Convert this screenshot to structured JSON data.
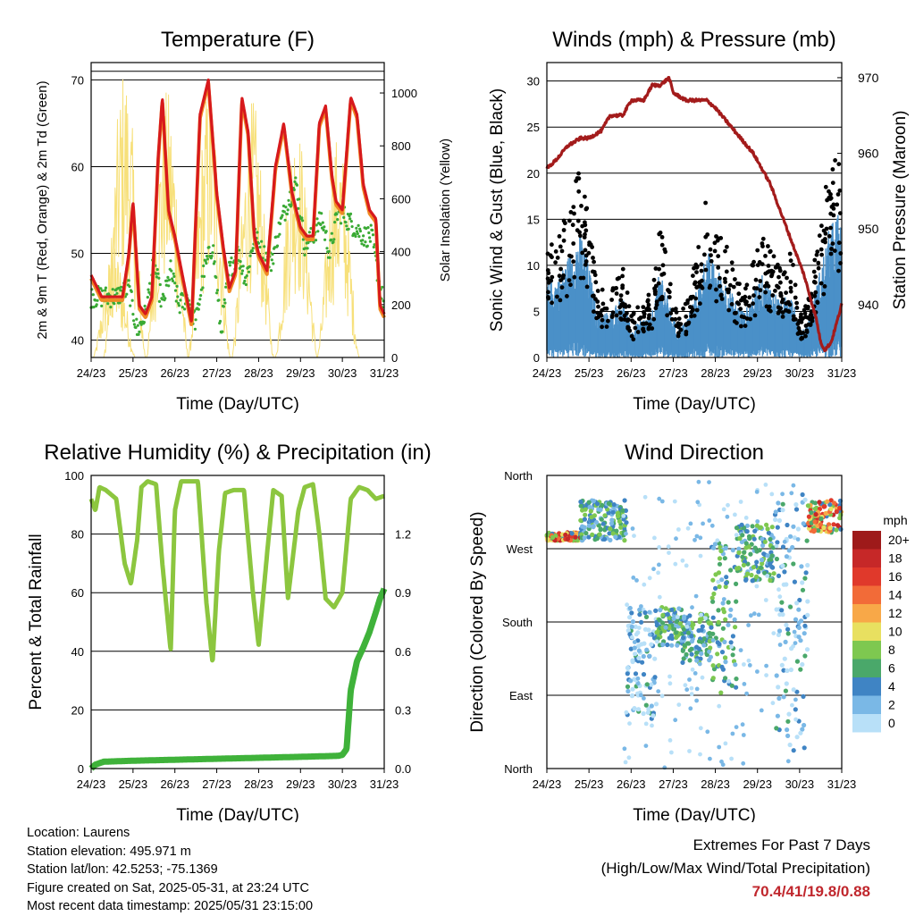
{
  "colors": {
    "t2m": "#d7191c",
    "t9m": "#f08a24",
    "td": "#3aaa35",
    "solar": "#f7e07a",
    "wind": "#4a90c8",
    "gust": "#000000",
    "pressure": "#a31b1b",
    "rh": "#8cc63f",
    "precip": "#3fb23a"
  },
  "time_ticks": [
    "24/23",
    "25/23",
    "26/23",
    "27/23",
    "28/23",
    "29/23",
    "30/23",
    "31/23"
  ],
  "chart_data": [
    {
      "id": "temperature",
      "type": "line",
      "title": "Temperature (F)",
      "xlabel": "Time (Day/UTC)",
      "ylabel": "2m & 9m T (Red, Orange) & 2m Td (Green)",
      "y2label": "Solar Insolation (Yellow)",
      "xlim": [
        0,
        7
      ],
      "ylim": [
        38,
        72
      ],
      "yticks": [
        40,
        50,
        60,
        70
      ],
      "y2lim": [
        0,
        1115
      ],
      "y2ticks": [
        0,
        200,
        400,
        600,
        800,
        1000
      ],
      "series": [
        {
          "key": "t2m",
          "axis": "left",
          "x": [
            0,
            0.25,
            0.5,
            0.75,
            0.9,
            1.0,
            1.15,
            1.3,
            1.45,
            1.6,
            1.7,
            1.85,
            2.0,
            2.2,
            2.4,
            2.6,
            2.8,
            3.0,
            3.15,
            3.3,
            3.45,
            3.6,
            3.75,
            3.9,
            4.0,
            4.2,
            4.4,
            4.6,
            4.8,
            5.0,
            5.15,
            5.3,
            5.45,
            5.6,
            5.75,
            5.85,
            6.0,
            6.2,
            6.35,
            6.5,
            6.65,
            6.8,
            6.9,
            7.0
          ],
          "y": [
            47.5,
            45,
            45,
            45,
            50,
            56,
            44,
            43,
            45,
            61,
            68,
            55,
            52,
            47,
            42,
            66,
            70,
            57,
            51,
            46,
            48,
            68,
            64,
            52,
            50,
            48,
            60,
            65,
            57,
            53,
            52,
            52,
            65,
            67,
            59,
            56,
            55,
            68,
            66,
            58,
            55,
            54,
            44,
            43
          ]
        },
        {
          "key": "td",
          "axis": "left",
          "x": [
            0,
            0.3,
            0.6,
            0.9,
            1.1,
            1.3,
            1.5,
            1.7,
            1.9,
            2.1,
            2.3,
            2.5,
            2.7,
            2.9,
            3.1,
            3.3,
            3.5,
            3.7,
            3.9,
            4.1,
            4.3,
            4.5,
            4.7,
            4.9,
            5.1,
            5.3,
            5.5,
            5.7,
            5.9,
            6.1,
            6.3,
            6.5,
            6.7,
            6.9,
            7.0
          ],
          "y": [
            45,
            45,
            45,
            46,
            41,
            43,
            49,
            44,
            48,
            44,
            45,
            42,
            48,
            51,
            41,
            48,
            50,
            47,
            52,
            50,
            49,
            53,
            56,
            58,
            51,
            52,
            54,
            50,
            55,
            54,
            53,
            52,
            52,
            46,
            44
          ]
        }
      ],
      "solar_peaks": [
        [
          0.55,
          1.0,
          420
        ],
        [
          0.8,
          1.0,
          1120
        ],
        [
          1.82,
          1.0,
          1020
        ],
        [
          2.82,
          1.0,
          1040
        ],
        [
          3.86,
          1.0,
          980
        ],
        [
          4.9,
          1.0,
          920
        ],
        [
          5.9,
          1.0,
          850
        ]
      ]
    },
    {
      "id": "winds",
      "type": "scatter",
      "title": "Winds (mph) & Pressure (mb)",
      "xlabel": "Time (Day/UTC)",
      "ylabel": "Sonic Wind & Gust (Blue, Black)",
      "y2label": "Station Pressure (Maroon)",
      "xlim": [
        0,
        7
      ],
      "ylim": [
        0,
        32
      ],
      "yticks": [
        0,
        5,
        10,
        15,
        20,
        25,
        30
      ],
      "y2lim": [
        933,
        972
      ],
      "y2ticks": [
        940,
        950,
        960,
        970
      ],
      "pressure": {
        "x": [
          0,
          0.2,
          0.5,
          0.8,
          1.0,
          1.3,
          1.5,
          1.8,
          2.0,
          2.3,
          2.5,
          2.7,
          2.9,
          3.0,
          3.3,
          3.6,
          3.8,
          4.0,
          4.3,
          4.6,
          4.9,
          5.1,
          5.3,
          5.5,
          5.7,
          5.9,
          6.1,
          6.25,
          6.4,
          6.5,
          6.6,
          6.75,
          6.9,
          7.0
        ],
        "y": [
          958,
          959,
          961,
          962,
          962,
          963,
          965,
          965,
          967,
          967,
          969,
          969,
          970,
          968,
          967,
          967,
          967,
          966,
          964,
          962,
          960,
          958,
          956,
          953,
          950,
          947,
          944,
          941,
          938,
          935,
          934,
          935,
          938,
          940
        ]
      },
      "wind_envelope": {
        "x": [
          0,
          0.3,
          0.6,
          0.8,
          1.0,
          1.2,
          1.5,
          1.8,
          2.0,
          2.2,
          2.5,
          2.7,
          2.9,
          3.1,
          3.3,
          3.6,
          3.8,
          4.0,
          4.3,
          4.5,
          4.7,
          4.9,
          5.1,
          5.3,
          5.6,
          5.8,
          6.0,
          6.2,
          6.5,
          6.7,
          6.9,
          7.0
        ],
        "y": [
          8,
          9,
          12,
          14,
          10,
          5,
          5,
          7,
          3,
          4,
          5,
          10,
          6,
          3,
          4,
          8,
          12,
          10,
          8,
          6,
          5,
          7,
          9,
          8,
          6,
          8,
          3,
          4,
          10,
          14,
          16,
          14
        ]
      }
    },
    {
      "id": "humidity",
      "type": "line",
      "title": "Relative Humidity (%) & Precipitation (in)",
      "xlabel": "Time (Day/UTC)",
      "ylabel": "Percent & Total Rainfall",
      "xlim": [
        0,
        7
      ],
      "ylim": [
        0,
        100
      ],
      "yticks": [
        0,
        20,
        40,
        60,
        80,
        100
      ],
      "y2lim": [
        0,
        1.5
      ],
      "y2ticks": [
        "0.0",
        "0.3",
        "0.6",
        "0.9",
        "1.2"
      ],
      "series": [
        {
          "key": "rh",
          "x": [
            0,
            0.1,
            0.2,
            0.35,
            0.6,
            0.8,
            0.95,
            1.1,
            1.2,
            1.35,
            1.55,
            1.7,
            1.9,
            2.0,
            2.15,
            2.3,
            2.55,
            2.75,
            2.9,
            3.05,
            3.2,
            3.4,
            3.65,
            3.85,
            4.0,
            4.2,
            4.35,
            4.55,
            4.7,
            4.95,
            5.1,
            5.3,
            5.45,
            5.6,
            5.8,
            6.0,
            6.2,
            6.4,
            6.6,
            6.8,
            7.0
          ],
          "y": [
            92,
            88,
            96,
            95,
            92,
            70,
            63,
            78,
            96,
            98,
            97,
            70,
            40,
            88,
            98,
            98,
            98,
            57,
            36,
            74,
            94,
            95,
            95,
            62,
            42,
            73,
            95,
            93,
            58,
            88,
            96,
            97,
            80,
            58,
            55,
            60,
            92,
            96,
            95,
            92,
            93
          ]
        },
        {
          "key": "precip",
          "x": [
            0,
            0.1,
            0.3,
            1.0,
            2.0,
            3.0,
            4.0,
            5.0,
            5.9,
            6.0,
            6.1,
            6.2,
            6.35,
            6.5,
            6.65,
            6.8,
            6.9,
            7.0
          ],
          "y": [
            0,
            0.02,
            0.035,
            0.04,
            0.045,
            0.05,
            0.055,
            0.06,
            0.065,
            0.07,
            0.1,
            0.4,
            0.55,
            0.62,
            0.7,
            0.8,
            0.87,
            0.92
          ]
        }
      ]
    },
    {
      "id": "direction",
      "type": "scatter",
      "title": "Wind Direction",
      "xlabel": "Time (Day/UTC)",
      "ylabel": "Direction (Colored By Speed)",
      "xlim": [
        0,
        7
      ],
      "ylim": [
        0,
        360
      ],
      "ytick_labels": [
        "North",
        "East",
        "South",
        "West",
        "North"
      ],
      "legend_title": "mph",
      "legend_labels": [
        "20+",
        "18",
        "16",
        "14",
        "12",
        "10",
        "8",
        "6",
        "4",
        "2",
        "0"
      ],
      "legend_colors": [
        "#9e1a1a",
        "#c62828",
        "#e0392b",
        "#f26b38",
        "#f8a848",
        "#e8e060",
        "#7ec850",
        "#4aa86a",
        "#3f84c4",
        "#7ab8e6",
        "#b8e0f8"
      ],
      "clusters": [
        [
          0.0,
          0.8,
          280,
          290,
          "warm"
        ],
        [
          0.8,
          1.9,
          280,
          330,
          "mid"
        ],
        [
          1.9,
          2.6,
          60,
          200,
          "cool"
        ],
        [
          2.6,
          3.2,
          150,
          200,
          "mid"
        ],
        [
          3.2,
          3.9,
          130,
          190,
          "mid"
        ],
        [
          3.9,
          4.5,
          90,
          280,
          "mid"
        ],
        [
          4.5,
          5.4,
          230,
          300,
          "mid"
        ],
        [
          5.4,
          6.2,
          20,
          340,
          "cool"
        ],
        [
          6.2,
          7.0,
          290,
          330,
          "warm"
        ]
      ]
    }
  ],
  "info": {
    "location": "Location: Laurens",
    "elevation": "Station elevation: 495.971 m",
    "latlon": "Station lat/lon: 42.5253; -75.1369",
    "created": "Figure created on Sat, 2025-05-31, at 23:24 UTC",
    "recent": "Most recent data timestamp: 2025/05/31 23:15:00"
  },
  "extremes": {
    "title": "Extremes For Past 7 Days",
    "subtitle": "(High/Low/Max Wind/Total Precipitation)",
    "values": "70.4/41/19.8/0.88"
  }
}
